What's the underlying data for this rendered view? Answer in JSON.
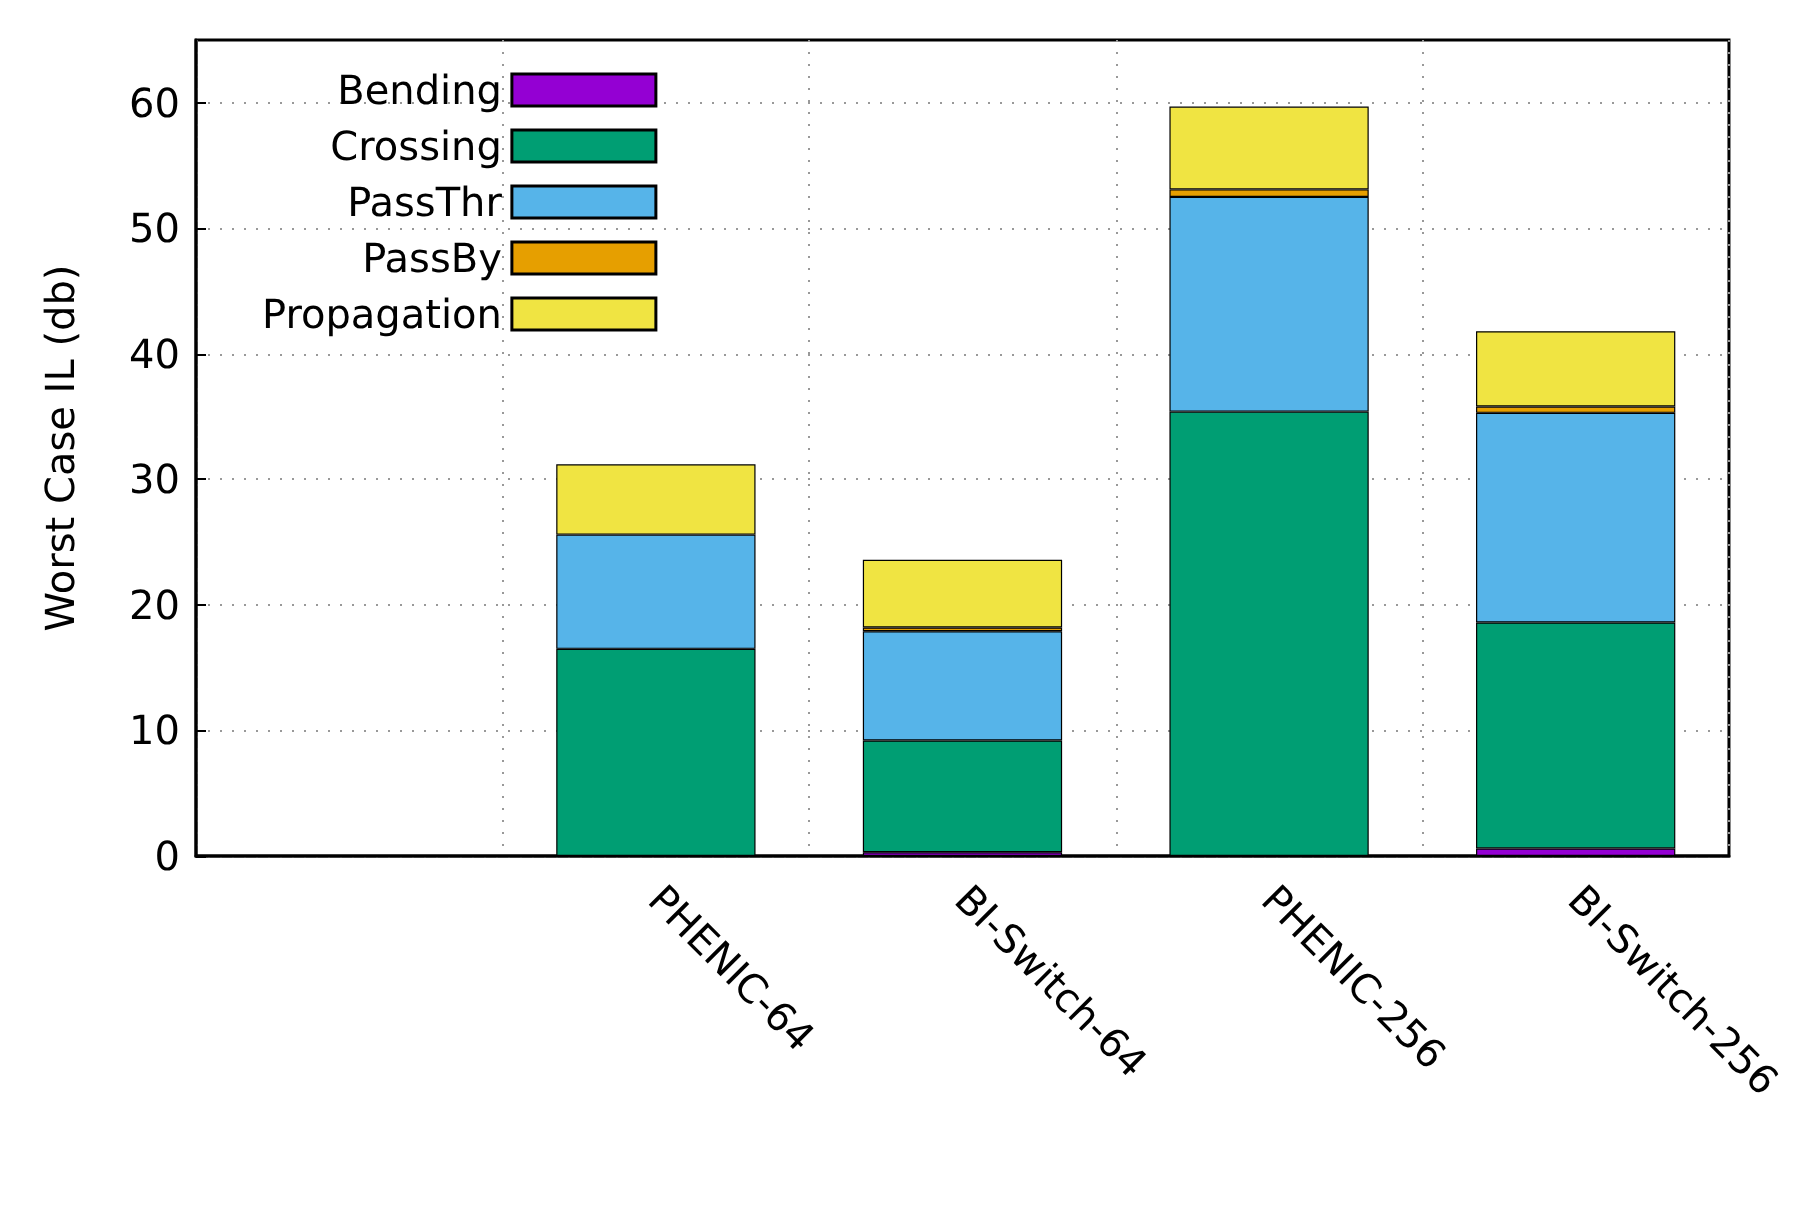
{
  "chart_data": {
    "type": "bar",
    "stacked": true,
    "ylabel": "Worst Case IL (db)",
    "categories": [
      null,
      "PHENIC-64",
      "BI-Switch-64",
      "PHENIC-256",
      "BI-Switch-256"
    ],
    "series": [
      {
        "name": "Bending",
        "color": "#9400d3",
        "values": [
          null,
          0,
          0.3,
          null,
          0.6
        ]
      },
      {
        "name": "Crossing",
        "color": "#009e73",
        "values": [
          null,
          16.5,
          8.9,
          35.4,
          18.0
        ]
      },
      {
        "name": "PassThr",
        "color": "#56b4e9",
        "values": [
          null,
          9.1,
          8.7,
          17.1,
          16.7
        ]
      },
      {
        "name": "PassBy",
        "color": "#e69f00",
        "values": [
          null,
          null,
          0.3,
          0.6,
          0.5
        ]
      },
      {
        "name": "Propagation",
        "color": "#f0e442",
        "values": [
          null,
          5.6,
          5.4,
          6.6,
          6.0
        ]
      }
    ],
    "ylim": [
      0,
      65
    ],
    "yticks": [
      0,
      10,
      20,
      30,
      40,
      50,
      60
    ],
    "grid": true,
    "legend": "top left"
  }
}
